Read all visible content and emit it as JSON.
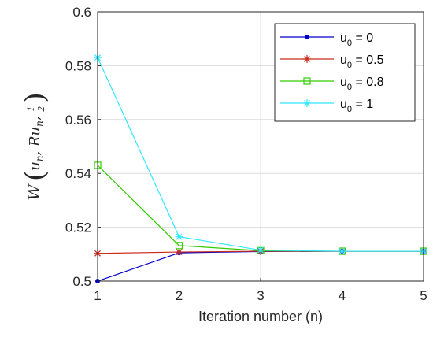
{
  "chart_data": {
    "type": "line",
    "x": [
      1,
      2,
      3,
      4,
      5
    ],
    "xlim": [
      1,
      5
    ],
    "ylim": [
      0.5,
      0.6
    ],
    "xticks": [
      "1",
      "2",
      "3",
      "4",
      "5"
    ],
    "yticks": [
      "0.5",
      "0.52",
      "0.54",
      "0.56",
      "0.58",
      "0.6"
    ],
    "xlabel": "Iteration number (n)",
    "ylabel": {
      "func": "W",
      "args": "u",
      "sub": "n",
      "mid": ", Ru",
      "half_num": "1",
      "half_den": "2"
    },
    "grid": true,
    "legend_position": "top-right",
    "series": [
      {
        "name": "u",
        "sub": "0",
        "value_text": " = 0",
        "color": "#0000cc",
        "marker": "dot",
        "values": [
          0.5,
          0.5105,
          0.511,
          0.5111,
          0.5111
        ]
      },
      {
        "name": "u",
        "sub": "0",
        "value_text": " = 0.5",
        "color": "#cc2b1a",
        "marker": "star",
        "values": [
          0.5103,
          0.5108,
          0.5111,
          0.5111,
          0.5111
        ]
      },
      {
        "name": "u",
        "sub": "0",
        "value_text": " = 0.8",
        "color": "#33cc00",
        "marker": "square",
        "values": [
          0.543,
          0.5132,
          0.5113,
          0.5111,
          0.5111
        ]
      },
      {
        "name": "u",
        "sub": "0",
        "value_text": " = 1",
        "color": "#33e6ff",
        "marker": "star",
        "values": [
          0.583,
          0.5165,
          0.5115,
          0.5111,
          0.5111
        ]
      }
    ]
  }
}
